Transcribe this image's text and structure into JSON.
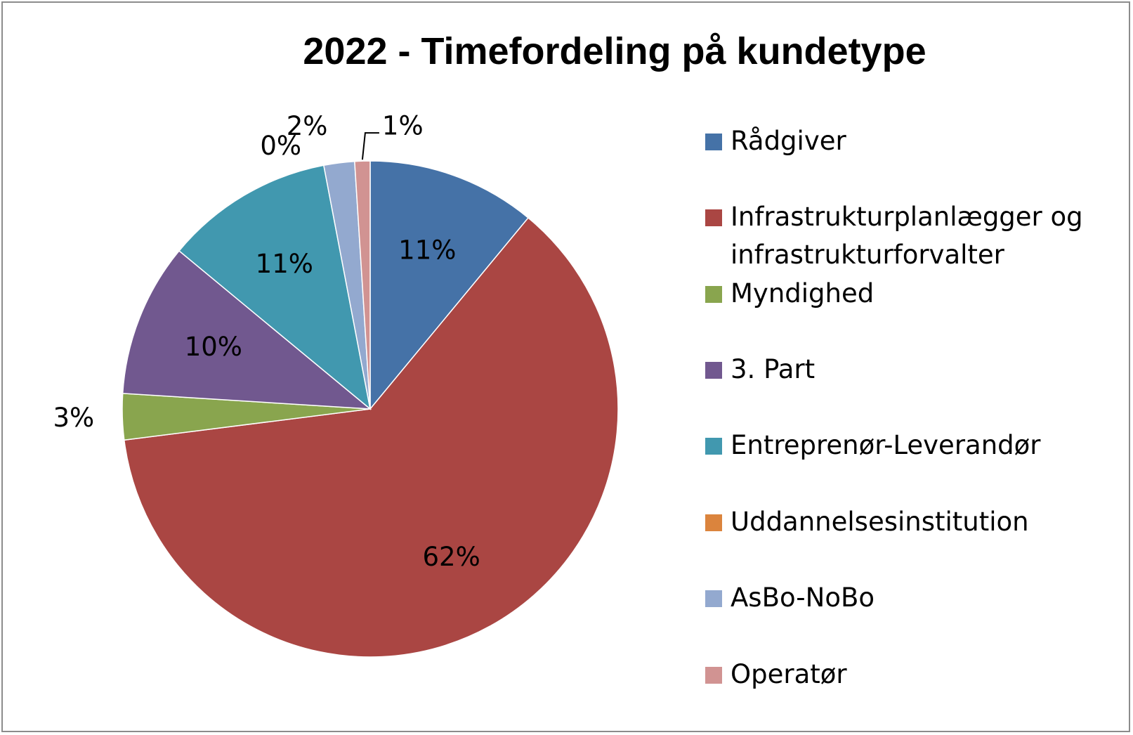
{
  "chart_data": {
    "type": "pie",
    "title": "2022 - Timefordeling på kundetype",
    "legend_position": "right",
    "slices": [
      {
        "name": "Rådgiver",
        "value": 11,
        "label": "11%",
        "color": "#4572a7"
      },
      {
        "name": "Infrastrukturplanlægger og infrastrukturforvalter",
        "value": 62,
        "label": "62%",
        "color": "#aa4643"
      },
      {
        "name": "Myndighed",
        "value": 3,
        "label": "3%",
        "color": "#89a54e"
      },
      {
        "name": "3. Part",
        "value": 10,
        "label": "10%",
        "color": "#71588f"
      },
      {
        "name": "Entreprenør-Leverandør",
        "value": 11,
        "label": "11%",
        "color": "#4198af"
      },
      {
        "name": "Uddannelsesinstitution",
        "value": 0,
        "label": "0%",
        "color": "#db843d"
      },
      {
        "name": "AsBo-NoBo",
        "value": 2,
        "label": "2%",
        "color": "#93a9cf"
      },
      {
        "name": "Operatør",
        "value": 1,
        "label": "1%",
        "color": "#d19392"
      }
    ],
    "legend_lines": [
      [
        "Rådgiver"
      ],
      [
        "Infrastrukturplanlægger og",
        "infrastrukturforvalter"
      ],
      [
        "Myndighed"
      ],
      [
        "3. Part"
      ],
      [
        "Entreprenør-Leverandør"
      ],
      [
        "Uddannelsesinstitution"
      ],
      [
        "AsBo-NoBo"
      ],
      [
        "Operatør"
      ]
    ]
  }
}
